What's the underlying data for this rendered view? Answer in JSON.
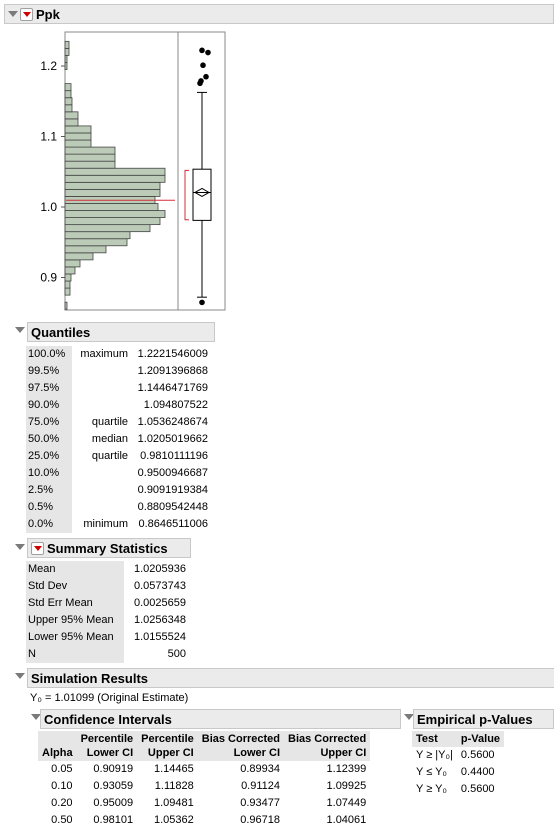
{
  "ppk": {
    "title": "Ppk",
    "yticks": [
      "1.2",
      "1.1",
      "1.0",
      "0.9"
    ],
    "histogram_bars": [
      {
        "lower": 0.855,
        "upper": 0.865,
        "fraction": 0.02
      },
      {
        "lower": 0.865,
        "upper": 0.875,
        "fraction": 0.0
      },
      {
        "lower": 0.875,
        "upper": 0.885,
        "fraction": 0.05
      },
      {
        "lower": 0.885,
        "upper": 0.895,
        "fraction": 0.05
      },
      {
        "lower": 0.895,
        "upper": 0.905,
        "fraction": 0.06
      },
      {
        "lower": 0.905,
        "upper": 0.915,
        "fraction": 0.1
      },
      {
        "lower": 0.915,
        "upper": 0.925,
        "fraction": 0.15
      },
      {
        "lower": 0.925,
        "upper": 0.935,
        "fraction": 0.28
      },
      {
        "lower": 0.935,
        "upper": 0.945,
        "fraction": 0.41
      },
      {
        "lower": 0.945,
        "upper": 0.955,
        "fraction": 0.62
      },
      {
        "lower": 0.955,
        "upper": 0.965,
        "fraction": 0.65
      },
      {
        "lower": 0.965,
        "upper": 0.975,
        "fraction": 0.85
      },
      {
        "lower": 0.975,
        "upper": 0.985,
        "fraction": 0.95
      },
      {
        "lower": 0.985,
        "upper": 0.995,
        "fraction": 1.0
      },
      {
        "lower": 0.995,
        "upper": 1.005,
        "fraction": 0.93
      },
      {
        "lower": 1.005,
        "upper": 1.015,
        "fraction": 0.9
      },
      {
        "lower": 1.015,
        "upper": 1.025,
        "fraction": 0.95
      },
      {
        "lower": 1.025,
        "upper": 1.035,
        "fraction": 0.95
      },
      {
        "lower": 1.035,
        "upper": 1.045,
        "fraction": 1.0
      },
      {
        "lower": 1.045,
        "upper": 1.055,
        "fraction": 1.0
      },
      {
        "lower": 1.055,
        "upper": 1.065,
        "fraction": 0.5
      },
      {
        "lower": 1.065,
        "upper": 1.075,
        "fraction": 0.5
      },
      {
        "lower": 1.075,
        "upper": 1.085,
        "fraction": 0.5
      },
      {
        "lower": 1.085,
        "upper": 1.095,
        "fraction": 0.26
      },
      {
        "lower": 1.095,
        "upper": 1.105,
        "fraction": 0.26
      },
      {
        "lower": 1.105,
        "upper": 1.115,
        "fraction": 0.26
      },
      {
        "lower": 1.115,
        "upper": 1.125,
        "fraction": 0.13
      },
      {
        "lower": 1.125,
        "upper": 1.135,
        "fraction": 0.13
      },
      {
        "lower": 1.135,
        "upper": 1.145,
        "fraction": 0.07
      },
      {
        "lower": 1.145,
        "upper": 1.155,
        "fraction": 0.07
      },
      {
        "lower": 1.155,
        "upper": 1.165,
        "fraction": 0.06
      },
      {
        "lower": 1.165,
        "upper": 1.175,
        "fraction": 0.06
      },
      {
        "lower": 1.175,
        "upper": 1.195,
        "fraction": 0.0
      },
      {
        "lower": 1.195,
        "upper": 1.205,
        "fraction": 0.02
      },
      {
        "lower": 1.205,
        "upper": 1.215,
        "fraction": 0.02
      },
      {
        "lower": 1.215,
        "upper": 1.225,
        "fraction": 0.04
      },
      {
        "lower": 1.225,
        "upper": 1.235,
        "fraction": 0.04
      }
    ],
    "outliers": [
      1.2222,
      1.2191,
      1.2011,
      1.1848,
      1.1788,
      1.1755,
      0.8647
    ],
    "colors": {
      "bar": "#bccbb8",
      "ref_line": "#d0303a"
    }
  },
  "quantiles": {
    "title": "Quantiles",
    "rows": [
      {
        "pct": "100.0%",
        "label": "maximum",
        "value": "1.2221546009"
      },
      {
        "pct": "99.5%",
        "label": "",
        "value": "1.2091396868"
      },
      {
        "pct": "97.5%",
        "label": "",
        "value": "1.1446471769"
      },
      {
        "pct": "90.0%",
        "label": "",
        "value": "1.094807522"
      },
      {
        "pct": "75.0%",
        "label": "quartile",
        "value": "1.0536248674"
      },
      {
        "pct": "50.0%",
        "label": "median",
        "value": "1.0205019662"
      },
      {
        "pct": "25.0%",
        "label": "quartile",
        "value": "0.9810111196"
      },
      {
        "pct": "10.0%",
        "label": "",
        "value": "0.9500946687"
      },
      {
        "pct": "2.5%",
        "label": "",
        "value": "0.9091919384"
      },
      {
        "pct": "0.5%",
        "label": "",
        "value": "0.8809542448"
      },
      {
        "pct": "0.0%",
        "label": "minimum",
        "value": "0.8646511006"
      }
    ]
  },
  "summary": {
    "title": "Summary Statistics",
    "rows": [
      {
        "label": "Mean",
        "value": "1.0205936"
      },
      {
        "label": "Std Dev",
        "value": "0.0573743"
      },
      {
        "label": "Std Err Mean",
        "value": "0.0025659"
      },
      {
        "label": "Upper 95% Mean",
        "value": "1.0256348"
      },
      {
        "label": "Lower 95% Mean",
        "value": "1.0155524"
      },
      {
        "label": "N",
        "value": "500"
      }
    ]
  },
  "simulation": {
    "title": "Simulation Results",
    "estimate": "Y₀ = 1.01099 (Original Estimate)",
    "ci": {
      "title": "Confidence Intervals",
      "headers": [
        [
          "Alpha",
          ""
        ],
        [
          "Percentile",
          "Lower CI"
        ],
        [
          "Percentile",
          "Upper CI"
        ],
        [
          "Bias Corrected",
          "Lower CI"
        ],
        [
          "Bias Corrected",
          "Upper CI"
        ]
      ],
      "rows": [
        [
          "0.05",
          "0.90919",
          "1.14465",
          "0.89934",
          "1.12399"
        ],
        [
          "0.10",
          "0.93059",
          "1.11828",
          "0.91124",
          "1.09925"
        ],
        [
          "0.20",
          "0.95009",
          "1.09481",
          "0.93477",
          "1.07449"
        ],
        [
          "0.50",
          "0.98101",
          "1.05362",
          "0.96718",
          "1.04061"
        ]
      ]
    },
    "pvalues": {
      "title": "Empirical p-Values",
      "headers": [
        "Test",
        "p-Value"
      ],
      "rows": [
        [
          "Y ≥ |Y₀|",
          "0.5600"
        ],
        [
          "Y ≤ Y₀",
          "0.4400"
        ],
        [
          "Y ≥ Y₀",
          "0.5600"
        ]
      ]
    }
  }
}
